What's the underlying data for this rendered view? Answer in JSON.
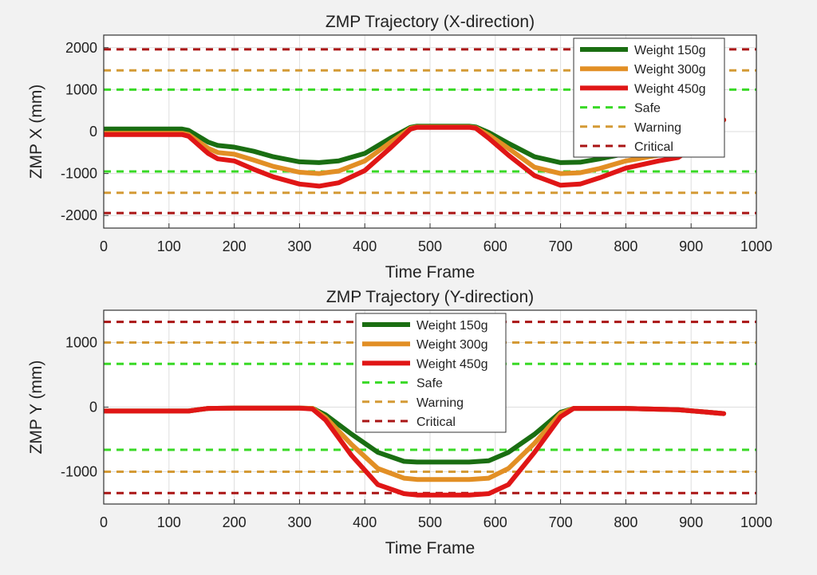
{
  "chart_data": [
    {
      "type": "line",
      "title": "ZMP Trajectory (X-direction)",
      "xlabel": "Time Frame",
      "ylabel": "ZMP X (mm)",
      "xlim": [
        0,
        1000
      ],
      "ylim": [
        -2300,
        2300
      ],
      "xticks": [
        "0",
        "100",
        "200",
        "300",
        "400",
        "500",
        "600",
        "700",
        "800",
        "900",
        "1000"
      ],
      "yticks": [
        "2000",
        "1000",
        "0",
        "-1000",
        "-2000"
      ],
      "grid": true,
      "legend_position": "top-right",
      "series": [
        {
          "name": "Weight 150g",
          "color": "#1a6e12",
          "width": 6,
          "x": [
            0,
            120,
            130,
            160,
            175,
            200,
            230,
            260,
            300,
            330,
            360,
            400,
            440,
            470,
            480,
            560,
            570,
            590,
            620,
            660,
            700,
            730,
            760,
            800,
            850,
            880,
            920,
            950
          ],
          "y": [
            60,
            60,
            30,
            -250,
            -330,
            -370,
            -470,
            -600,
            -720,
            -740,
            -700,
            -520,
            -150,
            100,
            130,
            130,
            110,
            -20,
            -280,
            -600,
            -740,
            -730,
            -650,
            -520,
            -400,
            -330,
            -100,
            280
          ]
        },
        {
          "name": "Weight 300g",
          "color": "#e28f25",
          "width": 6,
          "x": [
            0,
            120,
            130,
            160,
            175,
            200,
            230,
            260,
            300,
            330,
            360,
            400,
            440,
            470,
            480,
            560,
            570,
            590,
            620,
            660,
            700,
            730,
            760,
            800,
            850,
            880,
            920,
            950
          ],
          "y": [
            -40,
            -40,
            -70,
            -400,
            -500,
            -540,
            -680,
            -830,
            -970,
            -1000,
            -940,
            -700,
            -250,
            80,
            110,
            110,
            90,
            -80,
            -400,
            -850,
            -1000,
            -980,
            -880,
            -700,
            -560,
            -470,
            -150,
            280
          ]
        },
        {
          "name": "Weight 450g",
          "color": "#e01616",
          "width": 6,
          "x": [
            0,
            120,
            130,
            160,
            175,
            200,
            230,
            260,
            300,
            330,
            360,
            400,
            440,
            470,
            480,
            560,
            570,
            590,
            620,
            660,
            700,
            730,
            760,
            800,
            850,
            880,
            920,
            950
          ],
          "y": [
            -70,
            -70,
            -110,
            -520,
            -650,
            -700,
            -900,
            -1080,
            -1250,
            -1300,
            -1220,
            -930,
            -380,
            60,
            100,
            100,
            80,
            -160,
            -560,
            -1050,
            -1280,
            -1250,
            -1100,
            -870,
            -700,
            -620,
            -200,
            280
          ]
        },
        {
          "name": "Safe",
          "color": "#39d926",
          "dashed": true,
          "width": 3,
          "x": [
            0,
            1000
          ],
          "y": [
            1000,
            1000
          ]
        },
        {
          "name": "Safe",
          "color": "#39d926",
          "dashed": true,
          "width": 3,
          "legend": false,
          "x": [
            0,
            1000
          ],
          "y": [
            -950,
            -950
          ]
        },
        {
          "name": "Warning",
          "color": "#d49a35",
          "dashed": true,
          "width": 3,
          "x": [
            0,
            1000
          ],
          "y": [
            1460,
            1460
          ]
        },
        {
          "name": "Warning",
          "color": "#d49a35",
          "dashed": true,
          "width": 3,
          "legend": false,
          "x": [
            0,
            1000
          ],
          "y": [
            -1460,
            -1460
          ]
        },
        {
          "name": "Critical",
          "color": "#aa1515",
          "dashed": true,
          "width": 3,
          "x": [
            0,
            1000
          ],
          "y": [
            1960,
            1960
          ]
        },
        {
          "name": "Critical",
          "color": "#aa1515",
          "dashed": true,
          "width": 3,
          "legend": false,
          "x": [
            0,
            1000
          ],
          "y": [
            -1940,
            -1940
          ]
        }
      ]
    },
    {
      "type": "line",
      "title": "ZMP Trajectory (Y-direction)",
      "xlabel": "Time Frame",
      "ylabel": "ZMP Y (mm)",
      "xlim": [
        0,
        1000
      ],
      "ylim": [
        -1500,
        1500
      ],
      "xticks": [
        "0",
        "100",
        "200",
        "300",
        "400",
        "500",
        "600",
        "700",
        "800",
        "900",
        "1000"
      ],
      "yticks": [
        "1000",
        "0",
        "-1000"
      ],
      "grid": true,
      "legend_position": "top-center",
      "series": [
        {
          "name": "Weight 150g",
          "color": "#1a6e12",
          "width": 6,
          "x": [
            0,
            130,
            160,
            200,
            300,
            320,
            340,
            380,
            420,
            460,
            480,
            560,
            590,
            620,
            660,
            700,
            720,
            800,
            880,
            950
          ],
          "y": [
            -60,
            -60,
            -20,
            -15,
            -15,
            -20,
            -120,
            -420,
            -700,
            -840,
            -850,
            -850,
            -830,
            -700,
            -420,
            -80,
            -20,
            -20,
            -40,
            -100
          ]
        },
        {
          "name": "Weight 300g",
          "color": "#e28f25",
          "width": 6,
          "x": [
            0,
            130,
            160,
            200,
            300,
            320,
            340,
            380,
            420,
            460,
            480,
            560,
            590,
            620,
            660,
            700,
            720,
            800,
            880,
            950
          ],
          "y": [
            -60,
            -60,
            -20,
            -15,
            -15,
            -20,
            -160,
            -580,
            -950,
            -1100,
            -1120,
            -1120,
            -1100,
            -950,
            -560,
            -100,
            -20,
            -20,
            -40,
            -100
          ]
        },
        {
          "name": "Weight 450g",
          "color": "#e01616",
          "width": 6,
          "x": [
            0,
            130,
            160,
            200,
            300,
            320,
            340,
            380,
            420,
            460,
            480,
            560,
            590,
            620,
            660,
            700,
            720,
            800,
            880,
            950
          ],
          "y": [
            -60,
            -60,
            -20,
            -15,
            -15,
            -30,
            -200,
            -750,
            -1200,
            -1340,
            -1360,
            -1360,
            -1340,
            -1200,
            -700,
            -150,
            -20,
            -20,
            -40,
            -100
          ]
        },
        {
          "name": "Safe",
          "color": "#39d926",
          "dashed": true,
          "width": 3,
          "x": [
            0,
            1000
          ],
          "y": [
            670,
            670
          ]
        },
        {
          "name": "Safe",
          "color": "#39d926",
          "dashed": true,
          "width": 3,
          "legend": false,
          "x": [
            0,
            1000
          ],
          "y": [
            -660,
            -660
          ]
        },
        {
          "name": "Warning",
          "color": "#d49a35",
          "dashed": true,
          "width": 3,
          "x": [
            0,
            1000
          ],
          "y": [
            1000,
            1000
          ]
        },
        {
          "name": "Warning",
          "color": "#d49a35",
          "dashed": true,
          "width": 3,
          "legend": false,
          "x": [
            0,
            1000
          ],
          "y": [
            -1000,
            -1000
          ]
        },
        {
          "name": "Critical",
          "color": "#aa1515",
          "dashed": true,
          "width": 3,
          "x": [
            0,
            1000
          ],
          "y": [
            1320,
            1320
          ]
        },
        {
          "name": "Critical",
          "color": "#aa1515",
          "dashed": true,
          "width": 3,
          "legend": false,
          "x": [
            0,
            1000
          ],
          "y": [
            -1330,
            -1330
          ]
        }
      ]
    }
  ]
}
